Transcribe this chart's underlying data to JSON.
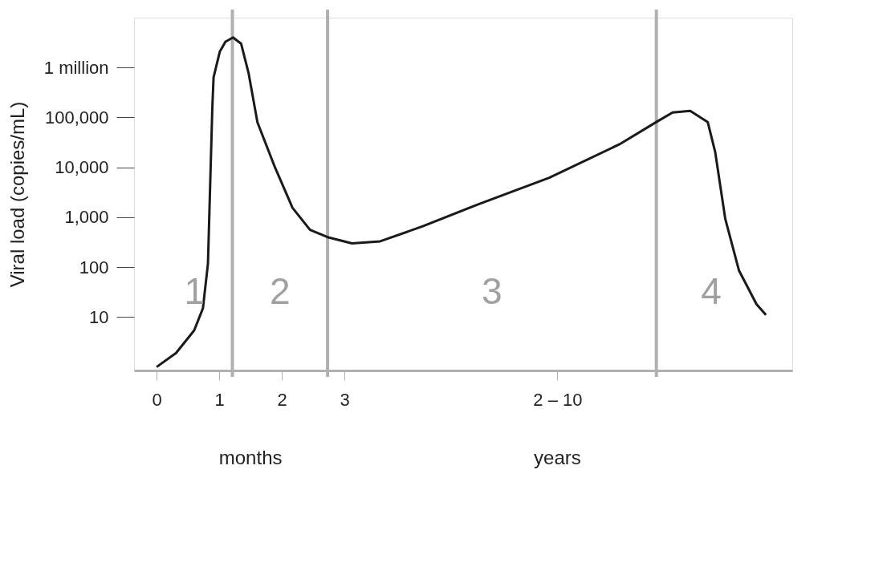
{
  "chart_data": {
    "type": "line",
    "ylabel": "Viral load (copies/mL)",
    "log": "y",
    "grid": false,
    "marker": "none",
    "line_style": "solid",
    "xlim": [
      -0.36,
      10.15
    ],
    "ylim": [
      0.85,
      10000000
    ],
    "xticks": [
      0,
      1,
      2,
      3,
      {
        "value": 6.4,
        "label": "2 – 10"
      }
    ],
    "yticks": [
      10,
      100,
      {
        "value": 1000,
        "label": "1,000"
      },
      {
        "value": 10000,
        "label": "10,000"
      },
      {
        "value": 100000,
        "label": "100,000"
      },
      {
        "value": 1000000,
        "label": "1 million"
      }
    ],
    "x": [
      0,
      0.31,
      0.6,
      0.74,
      0.82,
      0.85,
      0.89,
      0.91,
      1.01,
      1.1,
      1.22,
      1.35,
      1.47,
      1.61,
      1.89,
      2.17,
      2.45,
      2.73,
      3.12,
      3.57,
      4.25,
      5.15,
      6.27,
      7.39,
      7.98,
      8.24,
      8.52,
      8.8,
      8.92,
      9.08,
      9.3,
      9.58,
      9.73
    ],
    "series": [
      {
        "color": "#1a1a1a",
        "values": [
          1,
          1.9,
          5.4,
          15,
          118,
          2600,
          160000,
          640000,
          2100000,
          3300000,
          4000000,
          3000000,
          760000,
          80000,
          10000,
          1550,
          560,
          400,
          300,
          330,
          660,
          1850,
          6200,
          29000,
          81000,
          126000,
          135000,
          81000,
          20000,
          930,
          85,
          18,
          11
        ]
      }
    ],
    "ref_lines": [
      {
        "axis": "x",
        "value": 1.21,
        "color": "#b0b0b0"
      },
      {
        "axis": "x",
        "value": 2.73,
        "color": "#b0b0b0"
      },
      {
        "axis": "x",
        "value": 7.98,
        "color": "#b0b0b0"
      }
    ],
    "annotations": [
      "1",
      "2",
      "3",
      "4",
      "months",
      "years"
    ]
  }
}
